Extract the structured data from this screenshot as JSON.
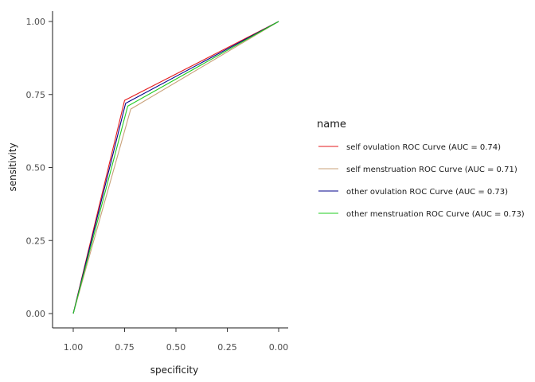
{
  "chart_data": {
    "type": "line",
    "title": "",
    "xlabel": "specificity",
    "ylabel": "sensitivity",
    "xlim": [
      1.0,
      0.0
    ],
    "ylim": [
      0.0,
      1.0
    ],
    "x_reversed": true,
    "grid": false,
    "legend_position": "right",
    "legend_title": "name",
    "x_ticks": [
      {
        "value": 1.0,
        "label": "1.00"
      },
      {
        "value": 0.75,
        "label": "0.75"
      },
      {
        "value": 0.5,
        "label": "0.50"
      },
      {
        "value": 0.25,
        "label": "0.25"
      },
      {
        "value": 0.0,
        "label": "0.00"
      }
    ],
    "y_ticks": [
      {
        "value": 0.0,
        "label": "0.00"
      },
      {
        "value": 0.25,
        "label": "0.25"
      },
      {
        "value": 0.5,
        "label": "0.50"
      },
      {
        "value": 0.75,
        "label": "0.75"
      },
      {
        "value": 1.0,
        "label": "1.00"
      }
    ],
    "series": [
      {
        "name": "self ovulation ROC Curve (AUC = 0.74)",
        "color": "#e41a1c",
        "points": [
          {
            "x": 1.0,
            "y": 0.0
          },
          {
            "x": 0.75,
            "y": 0.73
          },
          {
            "x": 0.0,
            "y": 1.0
          }
        ]
      },
      {
        "name": "self menstruation ROC Curve (AUC = 0.71)",
        "color": "#c8a078",
        "points": [
          {
            "x": 1.0,
            "y": 0.0
          },
          {
            "x": 0.72,
            "y": 0.7
          },
          {
            "x": 0.0,
            "y": 1.0
          }
        ]
      },
      {
        "name": "other ovulation ROC Curve (AUC = 0.73)",
        "color": "#00008b",
        "points": [
          {
            "x": 1.0,
            "y": 0.0
          },
          {
            "x": 0.745,
            "y": 0.72
          },
          {
            "x": 0.0,
            "y": 1.0
          }
        ]
      },
      {
        "name": "other menstruation ROC Curve (AUC = 0.73)",
        "color": "#22cc22",
        "points": [
          {
            "x": 1.0,
            "y": 0.0
          },
          {
            "x": 0.735,
            "y": 0.71
          },
          {
            "x": 0.0,
            "y": 1.0
          }
        ]
      }
    ]
  }
}
